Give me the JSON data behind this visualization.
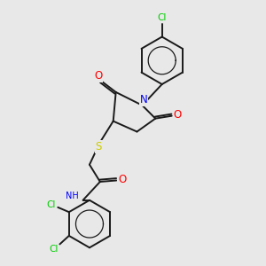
{
  "bg_color": "#e8e8e8",
  "bond_color": "#1a1a1a",
  "atom_colors": {
    "O": "#ff0000",
    "N": "#0000ff",
    "S": "#cccc00",
    "Cl": "#00cc00",
    "C": "#1a1a1a",
    "H": "#1a1a1a"
  },
  "lw": 1.4,
  "fs": 7.5
}
